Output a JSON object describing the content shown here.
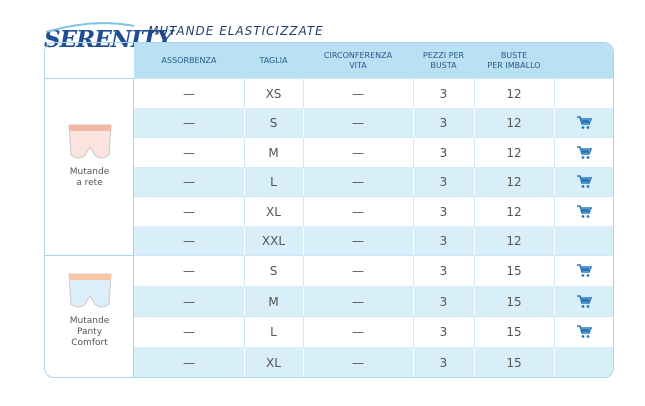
{
  "header": {
    "brand": "SERENITY",
    "title": "MUTANDE ELASTICIZZATE"
  },
  "table": {
    "columns": [
      [
        "ASSORBENZA"
      ],
      [
        "TAGLIA"
      ],
      [
        "CIRCONFERENZA",
        "VITA"
      ],
      [
        "PEZZI PER",
        "BUSTA"
      ],
      [
        "BUSTE",
        "PER IMBALLO"
      ]
    ],
    "groups": [
      {
        "name": [
          "Mutande",
          "a rete"
        ],
        "rows": [
          {
            "cells": [
              "—",
              "XS",
              "—",
              "3",
              "12"
            ],
            "cart": false
          },
          {
            "cells": [
              "—",
              "S",
              "—",
              "3",
              "12"
            ],
            "cart": true
          },
          {
            "cells": [
              "—",
              "M",
              "—",
              "3",
              "12"
            ],
            "cart": true
          },
          {
            "cells": [
              "—",
              "L",
              "—",
              "3",
              "12"
            ],
            "cart": true
          },
          {
            "cells": [
              "—",
              "XL",
              "—",
              "3",
              "12"
            ],
            "cart": true
          },
          {
            "cells": [
              "—",
              "XXL",
              "—",
              "3",
              "12"
            ],
            "cart": false
          }
        ]
      },
      {
        "name": [
          "Mutande",
          "Panty",
          "Comfort"
        ],
        "rows": [
          {
            "cells": [
              "—",
              "S",
              "—",
              "3",
              "15"
            ],
            "cart": true
          },
          {
            "cells": [
              "—",
              "M",
              "—",
              "3",
              "15"
            ],
            "cart": true
          },
          {
            "cells": [
              "—",
              "L",
              "—",
              "3",
              "15"
            ],
            "cart": true
          },
          {
            "cells": [
              "—",
              "XL",
              "—",
              "3",
              "15"
            ],
            "cart": false
          }
        ]
      }
    ]
  }
}
